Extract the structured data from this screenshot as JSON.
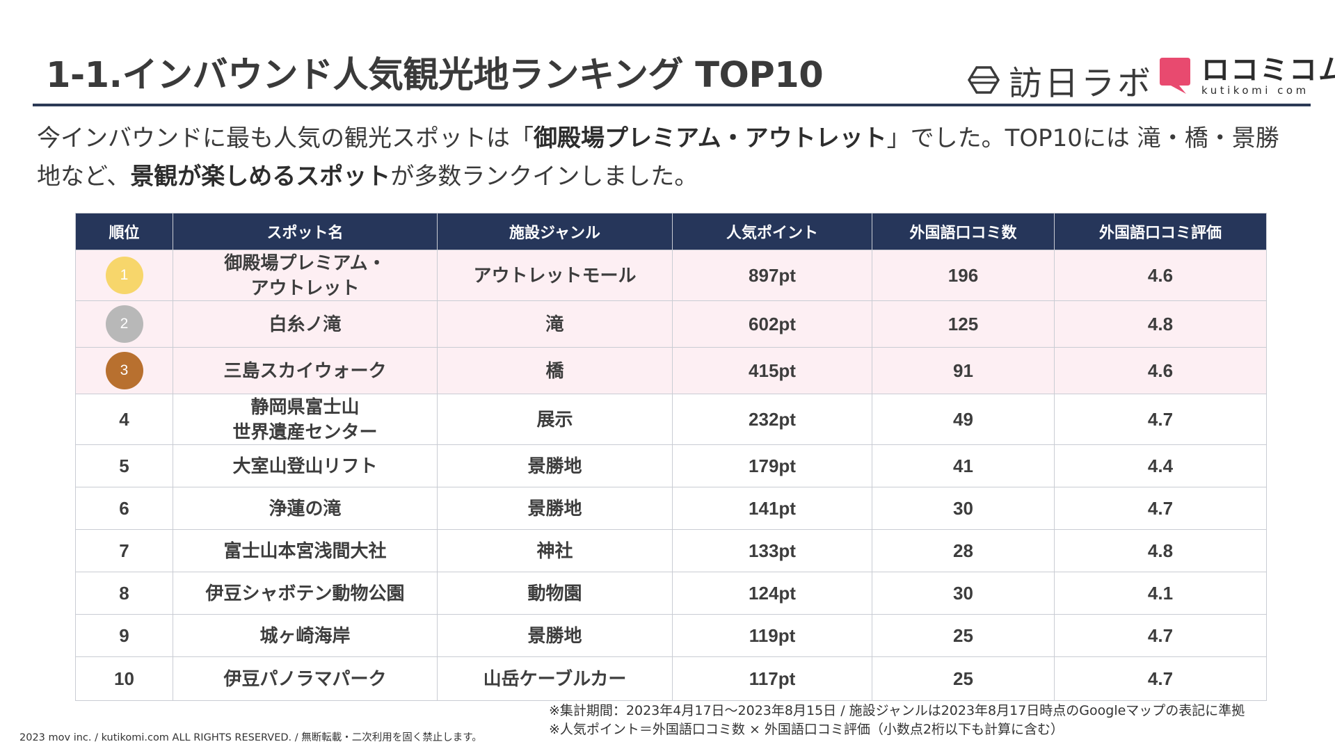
{
  "header": {
    "title": "1-1.インバウンド人気観光地ランキング TOP10",
    "logo_houjin": "訪日ラボ",
    "logo_kutikomi_jp": "ロコミコム",
    "logo_kutikomi_en": "kutikomi com"
  },
  "lead": {
    "p1": "今インバウンドに最も人気の観光スポットは「",
    "b1": "御殿場プレミアム・アウトレット",
    "p2": "」でした。TOP10には 滝・橋・景勝地など、",
    "b2": "景観が楽しめるスポット",
    "p3": "が多数ランクインしました。"
  },
  "table": {
    "headers": [
      "順位",
      "スポット名",
      "施設ジャンル",
      "人気ポイント",
      "外国語口コミ数",
      "外国語口コミ評価"
    ],
    "rows": [
      {
        "rank": "1",
        "name1": "御殿場プレミアム・",
        "name2": "アウトレット",
        "genre": "アウトレットモール",
        "points": "897pt",
        "reviews": "196",
        "rating": "4.6"
      },
      {
        "rank": "2",
        "name1": "白糸ノ滝",
        "name2": "",
        "genre": "滝",
        "points": "602pt",
        "reviews": "125",
        "rating": "4.8"
      },
      {
        "rank": "3",
        "name1": "三島スカイウォーク",
        "name2": "",
        "genre": "橋",
        "points": "415pt",
        "reviews": "91",
        "rating": "4.6"
      },
      {
        "rank": "4",
        "name1": "静岡県富士山",
        "name2": "世界遺産センター",
        "genre": "展示",
        "points": "232pt",
        "reviews": "49",
        "rating": "4.7"
      },
      {
        "rank": "5",
        "name1": "大室山登山リフト",
        "name2": "",
        "genre": "景勝地",
        "points": "179pt",
        "reviews": "41",
        "rating": "4.4"
      },
      {
        "rank": "6",
        "name1": "浄蓮の滝",
        "name2": "",
        "genre": "景勝地",
        "points": "141pt",
        "reviews": "30",
        "rating": "4.7"
      },
      {
        "rank": "7",
        "name1": "富士山本宮浅間大社",
        "name2": "",
        "genre": "神社",
        "points": "133pt",
        "reviews": "28",
        "rating": "4.8"
      },
      {
        "rank": "8",
        "name1": "伊豆シャボテン動物公園",
        "name2": "",
        "genre": "動物園",
        "points": "124pt",
        "reviews": "30",
        "rating": "4.1"
      },
      {
        "rank": "9",
        "name1": "城ヶ崎海岸",
        "name2": "",
        "genre": "景勝地",
        "points": "119pt",
        "reviews": "25",
        "rating": "4.7"
      },
      {
        "rank": "10",
        "name1": "伊豆パノラマパーク",
        "name2": "",
        "genre": "山岳ケーブルカー",
        "points": "117pt",
        "reviews": "25",
        "rating": "4.7"
      }
    ]
  },
  "notes": {
    "line1": "※集計期間：2023年4月17日〜2023年8月15日 / 施設ジャンルは2023年8月17日時点のGoogleマップの表記に準拠",
    "line2": "※人気ポイント＝外国語口コミ数 × 外国語口コミ評価（小数点2桁以下も計算に含む）"
  },
  "footer": {
    "copyright": "2023 mov inc. / kutikomi.com ALL RIGHTS RESERVED. / 無断転載・二次利用を固く禁止します。"
  },
  "colors": {
    "header_bg": "#26365a",
    "top3_row_bg": "#fdeff3",
    "gold": "#f7d66b",
    "silver": "#b8b8b8",
    "bronze": "#b8702f",
    "brand_pink": "#e84a6f"
  }
}
